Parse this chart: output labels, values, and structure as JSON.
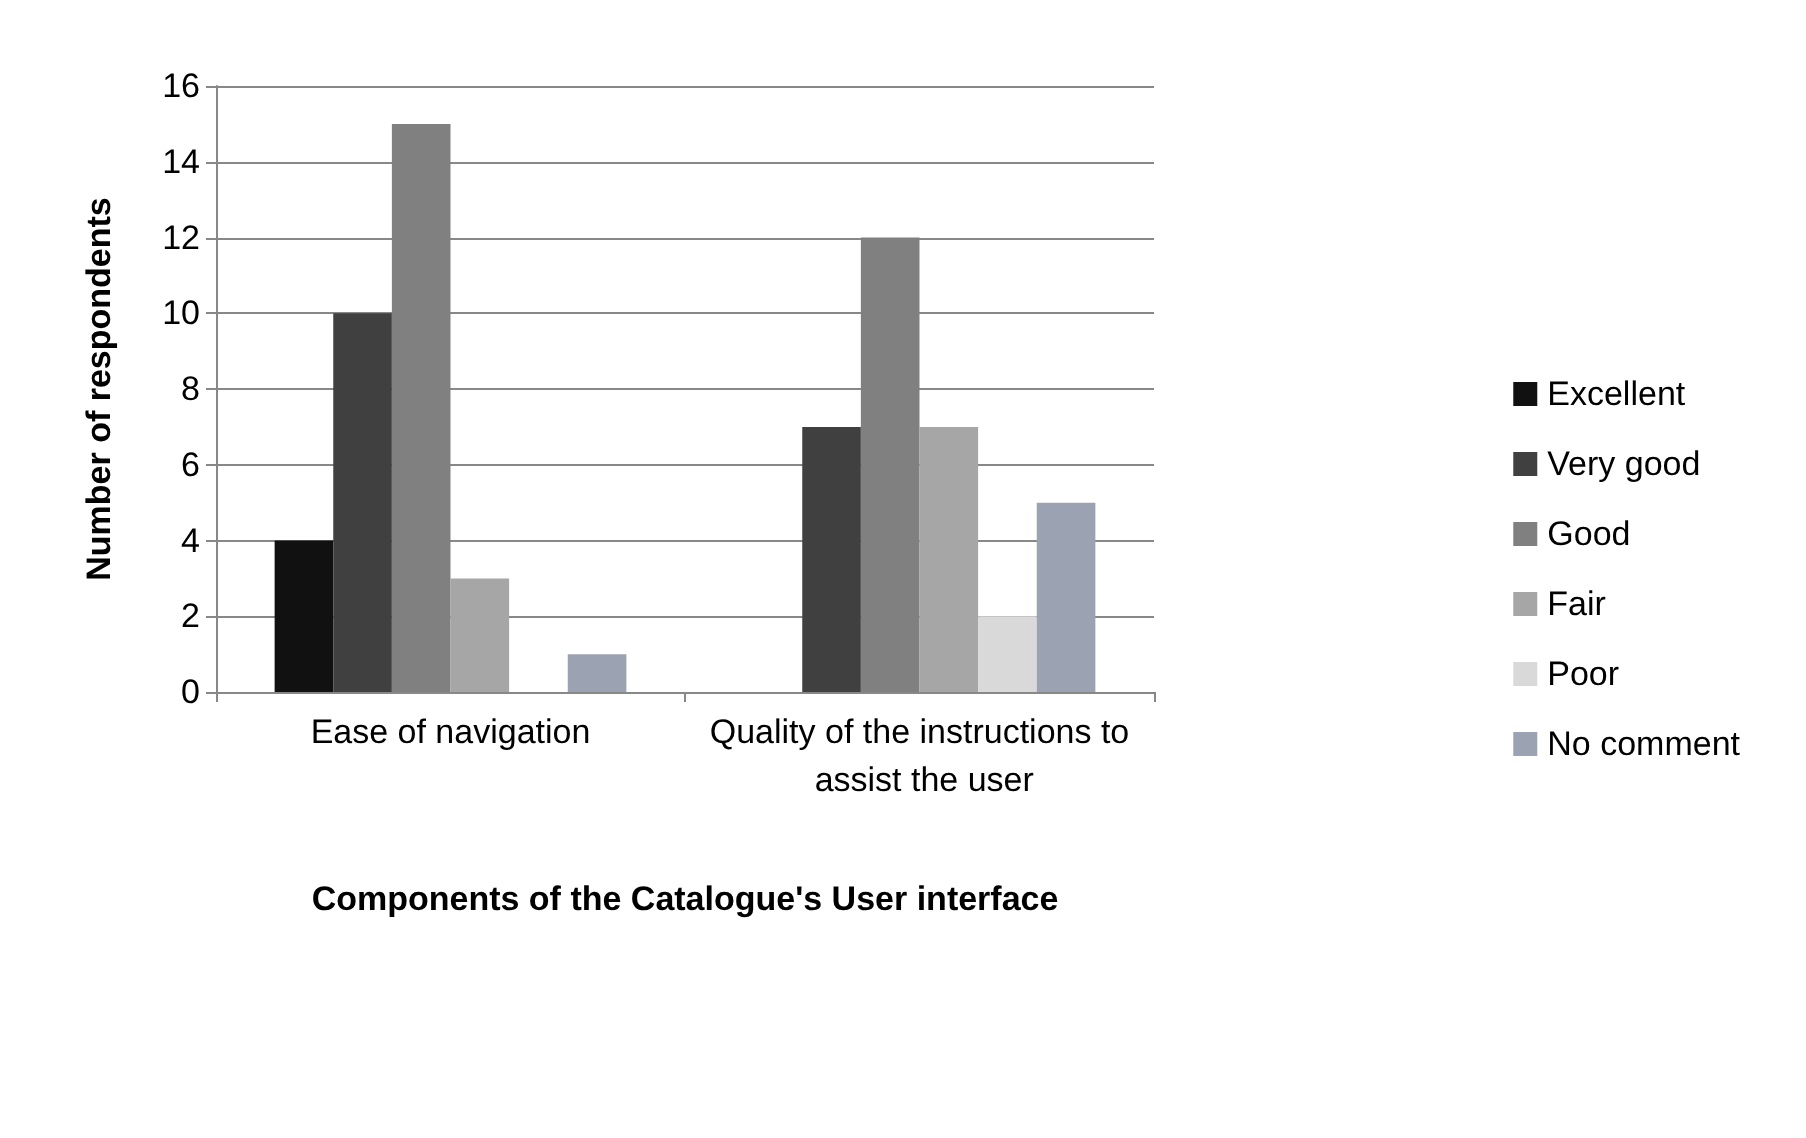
{
  "chart_data": {
    "type": "bar",
    "xlabel": "Components of the Catalogue's User interface",
    "ylabel": "Number of respondents",
    "categories": [
      "Ease of navigation",
      "Quality of the instructions to assist the user"
    ],
    "series": [
      {
        "name": "Excellent",
        "color": "#111111",
        "values": [
          4,
          0
        ]
      },
      {
        "name": "Very good",
        "color": "#404040",
        "values": [
          10,
          7
        ]
      },
      {
        "name": "Good",
        "color": "#808080",
        "values": [
          15,
          12
        ]
      },
      {
        "name": "Fair",
        "color": "#a6a6a6",
        "values": [
          3,
          7
        ]
      },
      {
        "name": "Poor",
        "color": "#d9d9d9",
        "values": [
          0,
          2
        ]
      },
      {
        "name": "No comment",
        "color": "#9ba2b2",
        "values": [
          1,
          5
        ]
      }
    ],
    "ylim": [
      0,
      16
    ],
    "yticks": [
      0,
      2,
      4,
      6,
      8,
      10,
      12,
      14,
      16
    ],
    "grid": "y",
    "legend": "right"
  }
}
